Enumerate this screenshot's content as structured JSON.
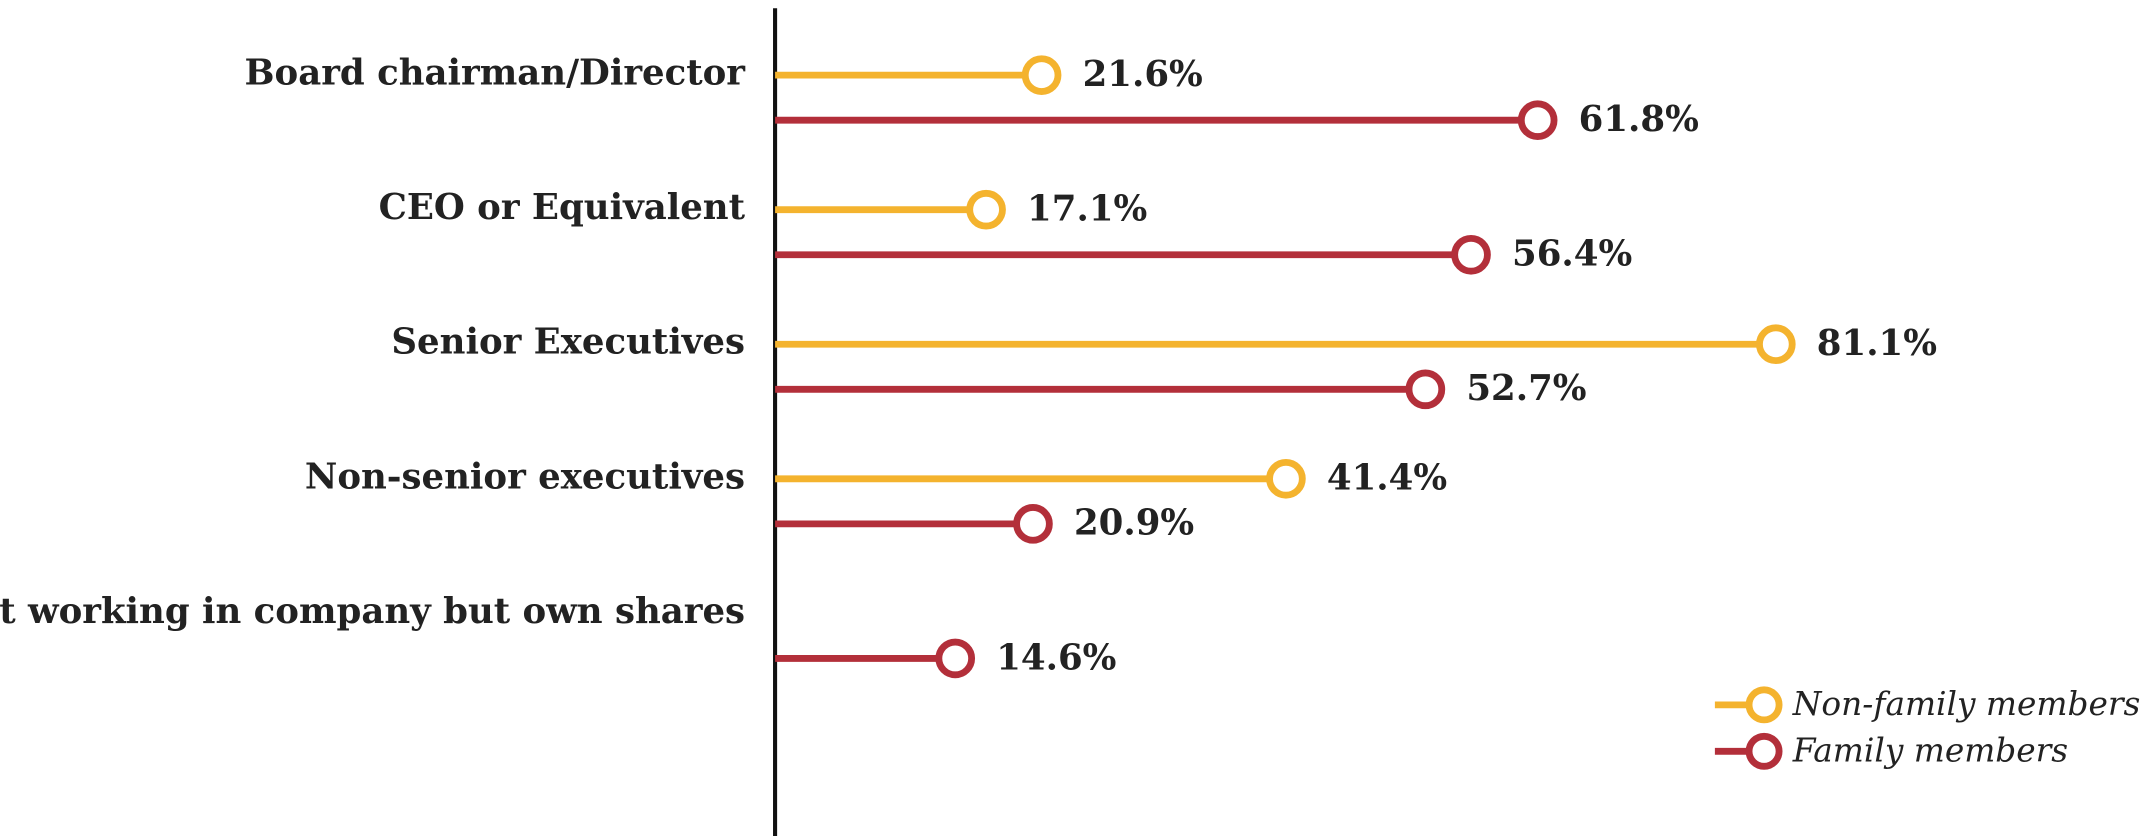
{
  "chart_data": {
    "type": "lollipop",
    "categories": [
      "Board chairman/Director",
      "CEO or Equivalent",
      "Senior Executives",
      "Non-senior executives",
      "Not working in company but own shares"
    ],
    "series": [
      {
        "name": "Non-family members",
        "color": "#f4b32e",
        "values": [
          21.6,
          17.1,
          81.1,
          41.4,
          null
        ],
        "value_labels": [
          "21.6%",
          "17.1%",
          "81.1%",
          "41.4%",
          null
        ]
      },
      {
        "name": "Family members",
        "color": "#b32f3a",
        "values": [
          61.8,
          56.4,
          52.7,
          20.9,
          14.6
        ],
        "value_labels": [
          "61.8%",
          "56.4%",
          "52.7%",
          "20.9%",
          "14.6%"
        ]
      }
    ],
    "xlim": [
      0,
      90
    ],
    "legend": "lower right"
  }
}
